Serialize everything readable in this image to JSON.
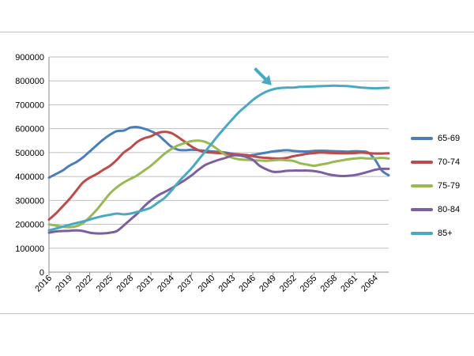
{
  "chart_data": {
    "type": "line",
    "title": "",
    "xlabel": "",
    "ylabel": "",
    "ylim": [
      0,
      900000
    ],
    "yticks": [
      0,
      100000,
      200000,
      300000,
      400000,
      500000,
      600000,
      700000,
      800000,
      900000
    ],
    "ytick_labels": [
      "0",
      "100000",
      "200000",
      "300000",
      "400000",
      "500000",
      "600000",
      "700000",
      "800000",
      "900000"
    ],
    "x": [
      2016,
      2017,
      2018,
      2019,
      2020,
      2021,
      2022,
      2023,
      2024,
      2025,
      2026,
      2027,
      2028,
      2029,
      2030,
      2031,
      2032,
      2033,
      2034,
      2035,
      2036,
      2037,
      2038,
      2039,
      2040,
      2041,
      2042,
      2043,
      2044,
      2045,
      2046,
      2047,
      2048,
      2049,
      2050,
      2051,
      2052,
      2053,
      2054,
      2055,
      2056,
      2057,
      2058,
      2059,
      2060,
      2061,
      2062,
      2063,
      2064,
      2065,
      2066
    ],
    "xtick_labels": [
      "2016",
      "2019",
      "2022",
      "2025",
      "2028",
      "2031",
      "2034",
      "2037",
      "2040",
      "2043",
      "2046",
      "2049",
      "2052",
      "2055",
      "2058",
      "2061",
      "2064"
    ],
    "grid": "horizontal",
    "legend_position": "right",
    "series": [
      {
        "name": "65-69",
        "color": "#4a7ebb",
        "values": [
          395000,
          410000,
          425000,
          445000,
          460000,
          480000,
          505000,
          530000,
          555000,
          575000,
          590000,
          592000,
          605000,
          607000,
          600000,
          590000,
          575000,
          550000,
          525000,
          512000,
          510000,
          512000,
          510000,
          508000,
          505000,
          503000,
          500000,
          495000,
          490000,
          486000,
          490000,
          495000,
          500000,
          505000,
          508000,
          510000,
          507000,
          505000,
          505000,
          507000,
          508000,
          507000,
          506000,
          505000,
          504000,
          506000,
          505000,
          500000,
          470000,
          425000,
          405000
        ]
      },
      {
        "name": "70-74",
        "color": "#be4b48",
        "values": [
          220000,
          245000,
          275000,
          305000,
          340000,
          375000,
          395000,
          410000,
          428000,
          445000,
          470000,
          500000,
          520000,
          545000,
          560000,
          568000,
          582000,
          587000,
          582000,
          565000,
          545000,
          525000,
          510000,
          502000,
          500000,
          498000,
          496000,
          494000,
          492000,
          490000,
          485000,
          480000,
          478000,
          476000,
          475000,
          478000,
          485000,
          490000,
          495000,
          498000,
          500000,
          499000,
          498000,
          497000,
          497000,
          498000,
          500000,
          498000,
          496000,
          496000,
          497000
        ]
      },
      {
        "name": "75-79",
        "color": "#98b954",
        "values": [
          200000,
          195000,
          190000,
          188000,
          192000,
          205000,
          230000,
          260000,
          295000,
          330000,
          355000,
          375000,
          390000,
          405000,
          425000,
          445000,
          470000,
          495000,
          515000,
          530000,
          540000,
          548000,
          550000,
          545000,
          530000,
          510000,
          490000,
          478000,
          472000,
          470000,
          468000,
          467000,
          466000,
          468000,
          470000,
          468000,
          465000,
          455000,
          450000,
          445000,
          450000,
          455000,
          462000,
          467000,
          472000,
          475000,
          477000,
          475000,
          476000,
          478000,
          475000
        ]
      },
      {
        "name": "80-84",
        "color": "#7d5fa0",
        "values": [
          165000,
          170000,
          172000,
          173000,
          175000,
          172000,
          165000,
          162000,
          162000,
          165000,
          172000,
          195000,
          220000,
          245000,
          275000,
          300000,
          320000,
          335000,
          350000,
          368000,
          385000,
          405000,
          428000,
          448000,
          460000,
          470000,
          478000,
          488000,
          488000,
          482000,
          470000,
          445000,
          430000,
          420000,
          420000,
          424000,
          425000,
          425000,
          425000,
          423000,
          418000,
          410000,
          405000,
          402000,
          403000,
          406000,
          412000,
          420000,
          428000,
          432000,
          432000
        ]
      },
      {
        "name": "85+",
        "color": "#46aac5",
        "values": [
          175000,
          182000,
          190000,
          198000,
          205000,
          212000,
          220000,
          228000,
          235000,
          240000,
          245000,
          242000,
          245000,
          252000,
          260000,
          270000,
          290000,
          310000,
          340000,
          375000,
          405000,
          435000,
          470000,
          505000,
          540000,
          575000,
          608000,
          640000,
          670000,
          695000,
          720000,
          740000,
          755000,
          765000,
          770000,
          772000,
          772000,
          775000,
          776000,
          777000,
          778000,
          779000,
          780000,
          779000,
          778000,
          775000,
          772000,
          770000,
          769000,
          770000,
          771000
        ]
      }
    ],
    "annotations": [
      {
        "type": "arrow",
        "color": "#46aac5",
        "points_to_x": 2049
      }
    ]
  }
}
